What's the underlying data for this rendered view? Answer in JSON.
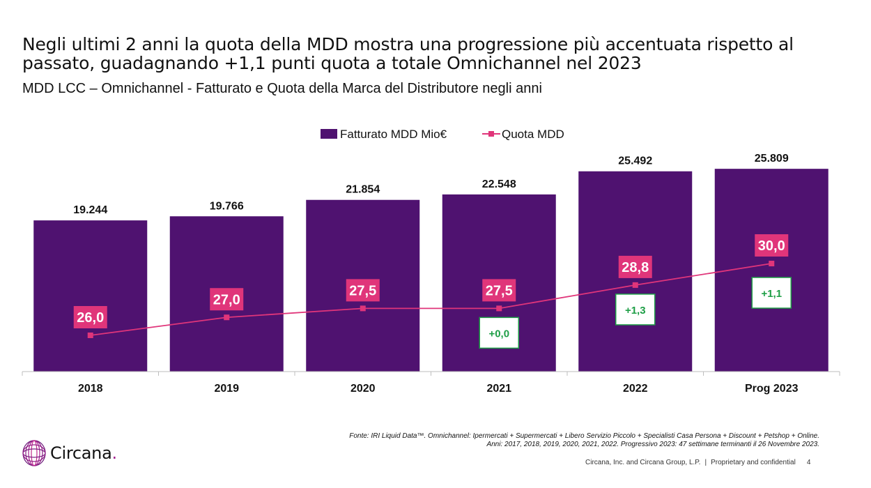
{
  "slide": {
    "title": "Negli ultimi 2 anni la quota della MDD mostra una progressione più accentuata rispetto al passato, guadagnando +1,1 punti quota a totale Omnichannel nel 2023",
    "subtitle": "MDD LCC – Omnichannel - Fatturato e Quota della Marca del Distributore negli anni",
    "source_line1": "Fonte: IRI Liquid Data™. Omnichannel: Ipermercati + Supermercati + Libero Servizio Piccolo + Specialisti Casa Persona + Discount + Petshop + Online.",
    "source_line2": "Anni:  2017, 2018, 2019, 2020, 2021, 2022. Progressivo 2023: 47 settimane terminanti il 26 Novembre 2023.",
    "footer_company": "Circana, Inc. and Circana Group, L.P.",
    "footer_separator": "|",
    "footer_confidential": "Proprietary and confidential",
    "page_number": "4",
    "logo_text": "Circana",
    "logo_dot": "."
  },
  "colors": {
    "bar": "#4f1270",
    "line": "#e0357a",
    "label_bg": "#e0357a",
    "delta_border": "#1e9e46",
    "delta_text": "#1e9e46",
    "logo_accent": "#a3218f"
  },
  "chart_data": {
    "type": "bar",
    "categories": [
      "2018",
      "2019",
      "2020",
      "2021",
      "2022",
      "Prog 2023"
    ],
    "series": [
      {
        "name": "Fatturato MDD Mio€",
        "type": "bar",
        "values": [
          19244,
          19766,
          21854,
          22548,
          25492,
          25809
        ],
        "labels": [
          "19.244",
          "19.766",
          "21.854",
          "22.548",
          "25.492",
          "25.809"
        ]
      },
      {
        "name": "Quota MDD",
        "type": "line",
        "values": [
          26.0,
          27.0,
          27.5,
          27.5,
          28.8,
          30.0
        ],
        "labels": [
          "26,0",
          "27,0",
          "27,5",
          "27,5",
          "28,8",
          "30,0"
        ]
      }
    ],
    "deltas": [
      {
        "category": "2021",
        "label": "+0,0"
      },
      {
        "category": "2022",
        "label": "+1,3"
      },
      {
        "category": "Prog 2023",
        "label": "+1,1"
      }
    ],
    "legend_position": "top-center",
    "grid": false
  }
}
